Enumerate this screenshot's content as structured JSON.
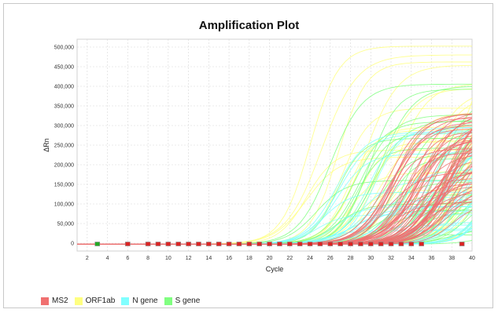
{
  "chart_data": {
    "type": "line",
    "title": "Amplification Plot",
    "xlabel": "Cycle",
    "ylabel": "ΔRn",
    "xlim": [
      1,
      40
    ],
    "ylim": [
      -20000,
      520000
    ],
    "x_ticks": [
      2,
      4,
      6,
      8,
      10,
      12,
      14,
      16,
      18,
      20,
      22,
      24,
      26,
      28,
      30,
      32,
      34,
      36,
      38,
      40
    ],
    "y_ticks": [
      0,
      50000,
      100000,
      150000,
      200000,
      250000,
      300000,
      350000,
      400000,
      450000,
      500000
    ],
    "y_tick_labels": [
      "0",
      "50,000",
      "100,000",
      "150,000",
      "200,000",
      "250,000",
      "300,000",
      "350,000",
      "400,000",
      "450,000",
      "500,000"
    ],
    "grid": true,
    "legend_position": "bottom-left",
    "series": [
      {
        "name": "MS2",
        "color": "#f07070",
        "plateau_range": [
          90000,
          345000
        ],
        "ct_range": [
          28,
          35
        ],
        "curve_count": 60
      },
      {
        "name": "ORF1ab",
        "color": "#ffff80",
        "plateau_range": [
          20000,
          505000
        ],
        "ct_range": [
          20,
          39
        ],
        "curve_count": 40
      },
      {
        "name": "N gene",
        "color": "#80ffff",
        "plateau_range": [
          10000,
          330000
        ],
        "ct_range": [
          21,
          39
        ],
        "curve_count": 40
      },
      {
        "name": "S gene",
        "color": "#80ff80",
        "plateau_range": [
          10000,
          408000
        ],
        "ct_range": [
          21,
          39
        ],
        "curve_count": 40
      }
    ],
    "baseline_markers": [
      3,
      6,
      8,
      9,
      10,
      11,
      12,
      13,
      14,
      15,
      16,
      17,
      18,
      19,
      20,
      21,
      22,
      23,
      24,
      25,
      26,
      27,
      28,
      29,
      30,
      31,
      32,
      33,
      34,
      35,
      39
    ]
  }
}
